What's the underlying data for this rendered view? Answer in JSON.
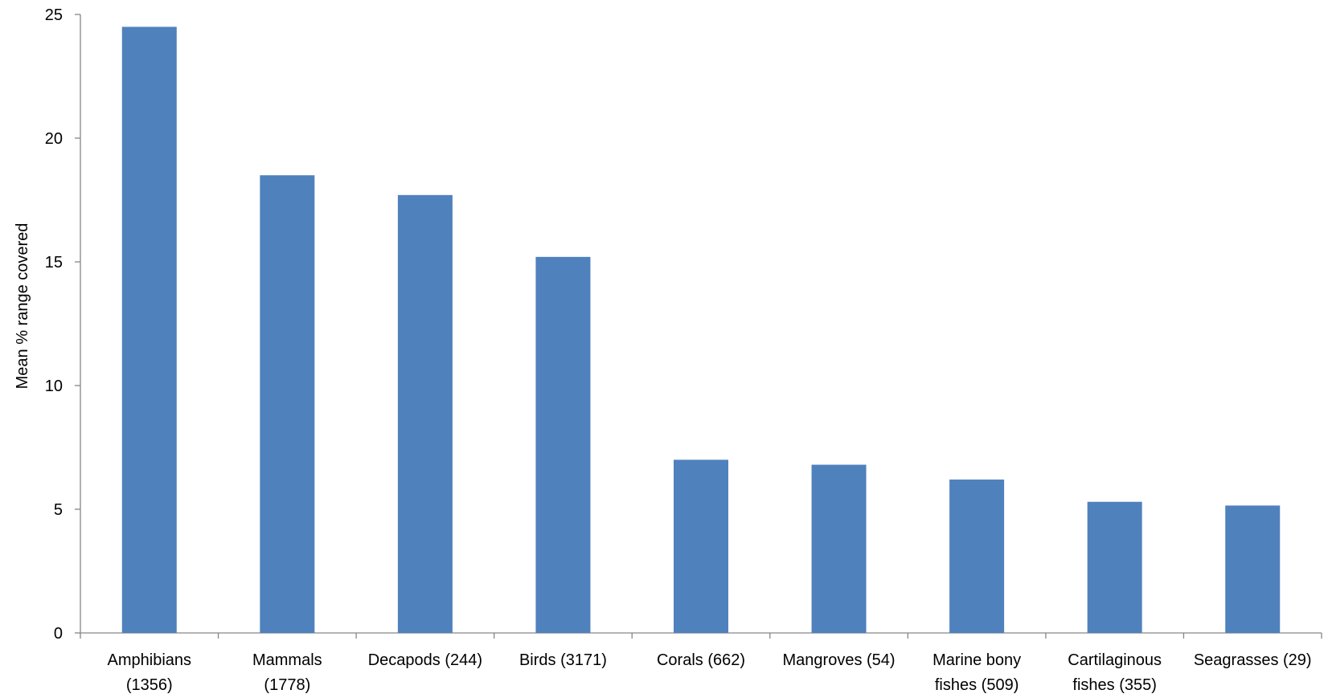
{
  "chart_data": {
    "type": "bar",
    "title": "",
    "xlabel": "",
    "ylabel": "Mean % range covered",
    "ylim": [
      0,
      25
    ],
    "yticks": [
      0,
      5,
      10,
      15,
      20,
      25
    ],
    "grid": false,
    "legend": "none",
    "categories": [
      [
        "Amphibians",
        "(1356)"
      ],
      [
        "Mammals",
        "(1778)"
      ],
      [
        "Decapods (244)"
      ],
      [
        "Birds (3171)"
      ],
      [
        "Corals (662)"
      ],
      [
        "Mangroves (54)"
      ],
      [
        "Marine bony",
        "fishes (509)"
      ],
      [
        "Cartilaginous",
        "fishes (355)"
      ],
      [
        "Seagrasses (29)"
      ]
    ],
    "series": [
      {
        "values": [
          24.5,
          18.5,
          17.7,
          15.2,
          7.0,
          6.8,
          6.2,
          5.3,
          5.15
        ],
        "color": "#4f81bd"
      }
    ]
  }
}
